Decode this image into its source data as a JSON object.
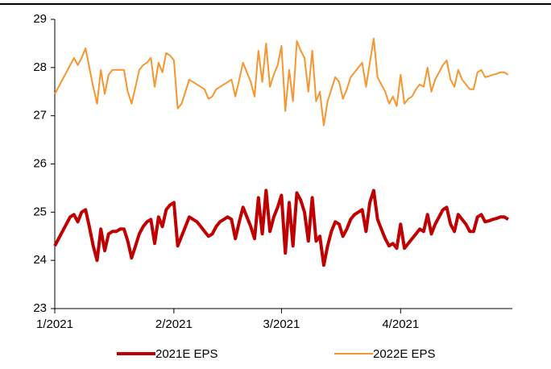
{
  "chart_data": {
    "type": "line",
    "categories": [
      "1/2021",
      null,
      null,
      null,
      null,
      null,
      null,
      null,
      null,
      null,
      null,
      null,
      null,
      null,
      null,
      null,
      null,
      null,
      null,
      null,
      null,
      null,
      null,
      null,
      null,
      null,
      null,
      null,
      null,
      null,
      null,
      "2/2021",
      null,
      null,
      null,
      null,
      null,
      null,
      null,
      null,
      null,
      null,
      null,
      null,
      null,
      null,
      null,
      null,
      null,
      null,
      null,
      null,
      null,
      null,
      null,
      null,
      null,
      null,
      null,
      "3/2021",
      null,
      null,
      null,
      null,
      null,
      null,
      null,
      null,
      null,
      null,
      null,
      null,
      null,
      null,
      null,
      null,
      null,
      null,
      null,
      null,
      null,
      null,
      null,
      null,
      null,
      null,
      null,
      null,
      null,
      null,
      "4/2021",
      null,
      null,
      null,
      null,
      null,
      null,
      null,
      null,
      null,
      null,
      null,
      null,
      null,
      null,
      null,
      null,
      null,
      null,
      null,
      null,
      null,
      null,
      null,
      null,
      null,
      null,
      null,
      null
    ],
    "series": [
      {
        "name": "2021E EPS",
        "color": "#c00000",
        "width": 4,
        "values": [
          24.3,
          24.45,
          24.6,
          24.75,
          24.9,
          24.95,
          24.8,
          25.0,
          25.05,
          24.7,
          24.3,
          24.0,
          24.65,
          24.2,
          24.55,
          24.6,
          24.6,
          24.65,
          24.65,
          24.4,
          24.05,
          24.3,
          24.55,
          24.7,
          24.8,
          24.85,
          24.35,
          24.9,
          24.7,
          25.05,
          25.15,
          25.2,
          24.3,
          24.5,
          24.7,
          24.9,
          24.85,
          24.8,
          24.7,
          24.6,
          24.5,
          24.55,
          24.7,
          24.8,
          24.85,
          24.9,
          24.85,
          24.45,
          24.8,
          25.1,
          24.9,
          24.7,
          24.45,
          25.3,
          24.55,
          25.45,
          24.6,
          24.9,
          25.1,
          25.35,
          24.15,
          25.2,
          24.3,
          25.4,
          25.25,
          25.0,
          24.4,
          25.3,
          24.4,
          24.5,
          23.9,
          24.3,
          24.6,
          24.8,
          24.75,
          24.5,
          24.65,
          24.85,
          24.95,
          25.0,
          25.05,
          24.6,
          25.2,
          25.45,
          24.85,
          24.65,
          24.45,
          24.3,
          24.35,
          24.25,
          24.75,
          24.25,
          24.35,
          24.45,
          24.55,
          24.65,
          24.6,
          24.95,
          24.55,
          24.75,
          24.9,
          25.05,
          25.1,
          24.75,
          24.6,
          24.95,
          24.85,
          24.75,
          24.6,
          24.6,
          24.9,
          24.95,
          24.8,
          24.82,
          24.85,
          24.87,
          24.9,
          24.9,
          24.85
        ]
      },
      {
        "name": "2022E EPS",
        "color": "#f7962f",
        "width": 2,
        "values": [
          27.45,
          27.6,
          27.75,
          27.9,
          28.05,
          28.2,
          28.05,
          28.2,
          28.4,
          28.0,
          27.6,
          27.25,
          27.95,
          27.45,
          27.85,
          27.95,
          27.95,
          27.95,
          27.95,
          27.5,
          27.25,
          27.6,
          27.95,
          28.05,
          28.1,
          28.2,
          27.6,
          28.1,
          27.9,
          28.3,
          28.25,
          28.15,
          27.15,
          27.25,
          27.5,
          27.75,
          27.7,
          27.65,
          27.6,
          27.55,
          27.35,
          27.4,
          27.55,
          27.6,
          27.65,
          27.7,
          27.75,
          27.4,
          27.75,
          28.1,
          27.9,
          27.7,
          27.4,
          28.35,
          27.7,
          28.5,
          27.6,
          27.85,
          28.05,
          28.45,
          27.1,
          27.95,
          27.3,
          28.55,
          28.35,
          28.2,
          27.5,
          28.35,
          27.3,
          27.5,
          26.8,
          27.3,
          27.55,
          27.8,
          27.7,
          27.35,
          27.55,
          27.8,
          27.9,
          28.0,
          28.1,
          27.6,
          28.1,
          28.6,
          27.8,
          27.65,
          27.5,
          27.25,
          27.4,
          27.2,
          27.85,
          27.25,
          27.35,
          27.4,
          27.55,
          27.65,
          27.6,
          28.0,
          27.5,
          27.75,
          27.9,
          28.05,
          28.15,
          27.75,
          27.6,
          27.95,
          27.75,
          27.65,
          27.55,
          27.55,
          27.9,
          27.95,
          27.8,
          27.82,
          27.85,
          27.87,
          27.9,
          27.9,
          27.85
        ]
      }
    ],
    "ylim": [
      23,
      29
    ],
    "yticks": [
      23,
      24,
      25,
      26,
      27,
      28,
      29
    ],
    "grid": false,
    "legend": "bottom"
  }
}
